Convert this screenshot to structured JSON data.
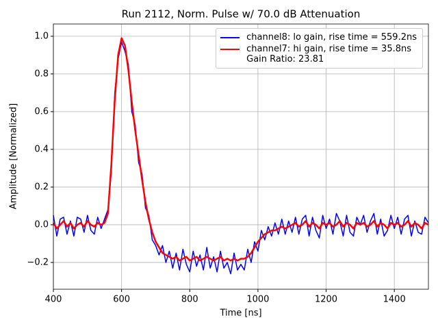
{
  "chart_data": {
    "type": "line",
    "title": "Run 2112, Norm. Pulse w/ 70.0 dB Attenuation",
    "xlabel": "Time [ns]",
    "ylabel": "Amplitude [Normalized]",
    "x": [
      400,
      410,
      420,
      430,
      440,
      450,
      460,
      470,
      480,
      490,
      500,
      510,
      520,
      530,
      540,
      550,
      560,
      570,
      580,
      590,
      600,
      610,
      620,
      630,
      640,
      650,
      660,
      670,
      680,
      690,
      700,
      710,
      720,
      730,
      740,
      750,
      760,
      770,
      780,
      790,
      800,
      810,
      820,
      830,
      840,
      850,
      860,
      870,
      880,
      890,
      900,
      910,
      920,
      930,
      940,
      950,
      960,
      970,
      980,
      990,
      1000,
      1010,
      1020,
      1030,
      1040,
      1050,
      1060,
      1070,
      1080,
      1090,
      1100,
      1110,
      1120,
      1130,
      1140,
      1150,
      1160,
      1170,
      1180,
      1190,
      1200,
      1210,
      1220,
      1230,
      1240,
      1250,
      1260,
      1270,
      1280,
      1290,
      1300,
      1310,
      1320,
      1330,
      1340,
      1350,
      1360,
      1370,
      1380,
      1390,
      1400,
      1410,
      1420,
      1430,
      1440,
      1450,
      1460,
      1470,
      1480,
      1490,
      1500
    ],
    "series": [
      {
        "name": "channel8: lo gain, rise time = 559.2ns",
        "color": "#0000ff",
        "values": [
          0.05,
          -0.06,
          0.03,
          0.04,
          -0.05,
          0.02,
          -0.06,
          0.04,
          0.03,
          -0.04,
          0.05,
          -0.03,
          -0.05,
          0.04,
          -0.02,
          0.03,
          0.08,
          0.28,
          0.7,
          0.88,
          0.97,
          0.92,
          0.85,
          0.6,
          0.53,
          0.33,
          0.27,
          0.09,
          0.05,
          -0.08,
          -0.11,
          -0.16,
          -0.11,
          -0.2,
          -0.14,
          -0.23,
          -0.15,
          -0.24,
          -0.13,
          -0.21,
          -0.25,
          -0.14,
          -0.22,
          -0.16,
          -0.24,
          -0.12,
          -0.23,
          -0.17,
          -0.25,
          -0.14,
          -0.23,
          -0.2,
          -0.26,
          -0.15,
          -0.24,
          -0.21,
          -0.24,
          -0.13,
          -0.2,
          -0.09,
          -0.14,
          -0.03,
          -0.08,
          -0.01,
          -0.06,
          0.01,
          -0.05,
          0.03,
          -0.05,
          0.02,
          -0.04,
          0.04,
          -0.05,
          0.03,
          0.05,
          -0.06,
          0.04,
          -0.03,
          -0.07,
          0.05,
          -0.02,
          0.03,
          -0.05,
          0.06,
          0.02,
          -0.06,
          0.05,
          -0.04,
          -0.06,
          0.04,
          0.0,
          0.05,
          -0.04,
          0.02,
          0.06,
          -0.05,
          0.03,
          -0.06,
          -0.03,
          0.05,
          -0.02,
          0.04,
          -0.05,
          0.03,
          0.05,
          -0.06,
          0.02,
          -0.04,
          -0.05,
          0.04,
          0.01
        ]
      },
      {
        "name": "channel7: hi gain, rise time = 35.8ns\nGain Ratio: 23.81",
        "color": "#ff0000",
        "values": [
          0.01,
          -0.02,
          0.0,
          0.02,
          -0.01,
          0.01,
          -0.02,
          0.0,
          0.01,
          -0.01,
          0.02,
          0.0,
          -0.01,
          0.01,
          0.0,
          0.01,
          0.06,
          0.32,
          0.66,
          0.9,
          0.99,
          0.95,
          0.82,
          0.65,
          0.5,
          0.37,
          0.24,
          0.12,
          0.03,
          -0.04,
          -0.09,
          -0.12,
          -0.15,
          -0.16,
          -0.17,
          -0.18,
          -0.17,
          -0.19,
          -0.18,
          -0.17,
          -0.19,
          -0.18,
          -0.17,
          -0.19,
          -0.18,
          -0.17,
          -0.18,
          -0.19,
          -0.18,
          -0.17,
          -0.19,
          -0.18,
          -0.19,
          -0.18,
          -0.19,
          -0.18,
          -0.18,
          -0.17,
          -0.15,
          -0.12,
          -0.09,
          -0.07,
          -0.05,
          -0.04,
          -0.03,
          -0.03,
          -0.02,
          -0.01,
          -0.02,
          -0.01,
          0.0,
          0.01,
          -0.01,
          0.0,
          0.02,
          -0.01,
          0.01,
          0.0,
          -0.02,
          0.01,
          0.0,
          0.01,
          -0.01,
          0.0,
          0.02,
          -0.01,
          0.01,
          0.0,
          -0.02,
          0.01,
          0.0,
          0.01,
          -0.01,
          0.0,
          0.02,
          -0.01,
          0.01,
          0.0,
          -0.02,
          0.01,
          0.0,
          0.01,
          -0.01,
          0.0,
          0.02,
          -0.01,
          0.01,
          0.0,
          -0.02,
          0.01,
          0.0
        ]
      }
    ],
    "xlim": [
      400,
      1500
    ],
    "xticks": [
      400,
      600,
      800,
      1000,
      1200,
      1400
    ],
    "ylim": [
      -0.342,
      1.065
    ],
    "yticks": [
      {
        "value": -0.2,
        "label": "−0.2"
      },
      {
        "value": 0,
        "label": "0.0"
      },
      {
        "value": 0.2,
        "label": "0.2"
      },
      {
        "value": 0.4,
        "label": "0.4"
      },
      {
        "value": 0.6,
        "label": "0.6"
      },
      {
        "value": 0.8,
        "label": "0.8"
      },
      {
        "value": 1.0,
        "label": "1.0"
      }
    ],
    "grid": true,
    "legend": "upper right"
  }
}
